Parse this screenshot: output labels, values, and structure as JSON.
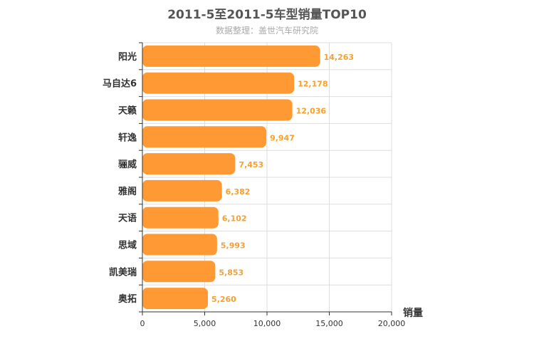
{
  "chart_data": {
    "type": "bar",
    "orientation": "horizontal",
    "title": "2011-5至2011-5车型销量TOP10",
    "subtitle": "数据整理：盖世汽车研究院",
    "categories": [
      "阳光",
      "马自达6",
      "天籁",
      "轩逸",
      "骊威",
      "雅阁",
      "天语",
      "思域",
      "凯美瑞",
      "奥拓"
    ],
    "values": [
      14263,
      12178,
      12036,
      9947,
      7453,
      6382,
      6102,
      5993,
      5853,
      5260
    ],
    "value_labels": [
      "14,263",
      "12,178",
      "12,036",
      "9,947",
      "7,453",
      "6,382",
      "6,102",
      "5,993",
      "5,853",
      "5,260"
    ],
    "xlabel": "销量",
    "xlim": [
      0,
      20000
    ],
    "xticks": [
      0,
      5000,
      10000,
      15000,
      20000
    ],
    "xtick_labels": [
      "0",
      "5,000",
      "10,000",
      "15,000",
      "20,000"
    ],
    "grid": true,
    "bar_color": "#ff9933",
    "label_color": "#f5a030"
  }
}
